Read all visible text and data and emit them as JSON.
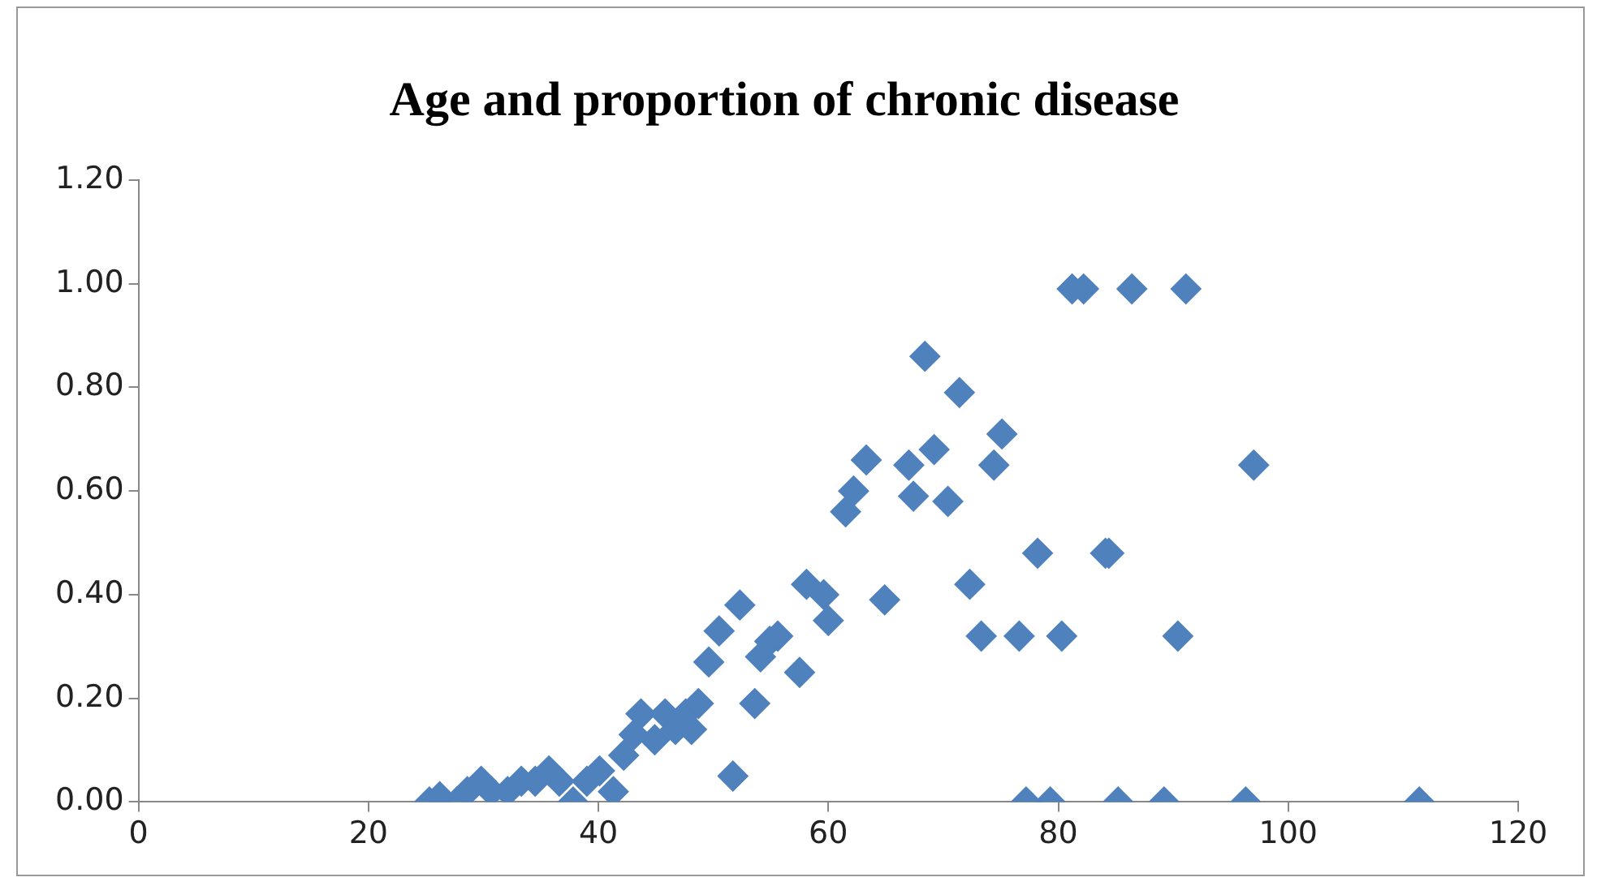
{
  "chart_data": {
    "type": "scatter",
    "title": "Age and proportion of chronic disease",
    "x": [
      25.3,
      26.2,
      27.7,
      28.6,
      29.8,
      30.7,
      32.1,
      33.3,
      34.5,
      35.7,
      36.6,
      37.8,
      39,
      40.1,
      41.3,
      42.2,
      43.1,
      43.7,
      44.9,
      45.8,
      46.7,
      47.6,
      48.1,
      48.7,
      49.6,
      50.5,
      51.7,
      52.3,
      53.6,
      54.1,
      54.9,
      55.6,
      57.5,
      58.1,
      59.6,
      60,
      61.5,
      62.2,
      63.3,
      64.9,
      67,
      67.4,
      68.4,
      69.2,
      70.4,
      71.4,
      72.3,
      73.3,
      74.4,
      75.1,
      76.6,
      78.2,
      80.3,
      81.2,
      82.2,
      84.1,
      84.4,
      86.4,
      90.4,
      91.1,
      97,
      77.2,
      79.3,
      85.2,
      89.2,
      96.3,
      111.4
    ],
    "series": [
      {
        "color": "#4f81bd",
        "values": [
          0,
          0.01,
          0,
          0.02,
          0.04,
          0.02,
          0.02,
          0.04,
          0.04,
          0.06,
          0.04,
          0,
          0.04,
          0.06,
          0.02,
          0.09,
          0.13,
          0.17,
          0.12,
          0.17,
          0.14,
          0.17,
          0.14,
          0.19,
          0.27,
          0.33,
          0.05,
          0.38,
          0.19,
          0.28,
          0.31,
          0.32,
          0.25,
          0.42,
          0.4,
          0.35,
          0.56,
          0.6,
          0.66,
          0.39,
          0.65,
          0.59,
          0.86,
          0.68,
          0.58,
          0.79,
          0.42,
          0.32,
          0.65,
          0.71,
          0.32,
          0.48,
          0.32,
          0.99,
          0.99,
          0.48,
          0.48,
          0.99,
          0.32,
          0.99,
          0.65,
          0,
          0,
          0,
          0,
          0,
          0
        ]
      }
    ],
    "xlim": [
      0,
      120
    ],
    "xticks": [
      0,
      20,
      40,
      60,
      80,
      100,
      120
    ],
    "ylim": [
      0,
      1.2
    ],
    "yticks": [
      {
        "value": 0,
        "label": "0.00"
      },
      {
        "value": 0.2,
        "label": "0.20"
      },
      {
        "value": 0.4,
        "label": "0.40"
      },
      {
        "value": 0.6,
        "label": "0.60"
      },
      {
        "value": 0.8,
        "label": "0.80"
      },
      {
        "value": 1,
        "label": "1.00"
      },
      {
        "value": 1.2,
        "label": "1.20"
      }
    ],
    "marker": "diamond",
    "grid": false,
    "legend": false
  }
}
